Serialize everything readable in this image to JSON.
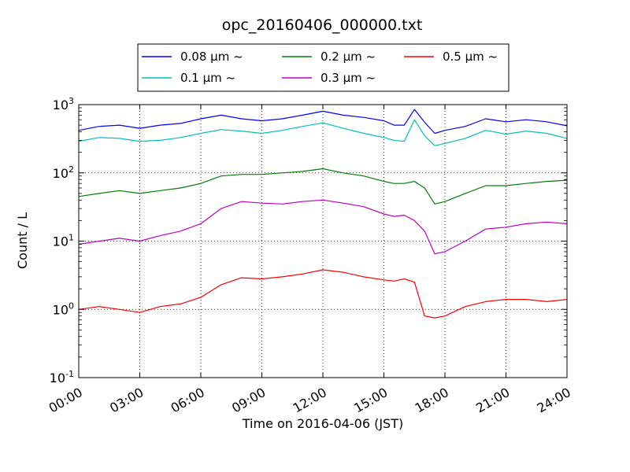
{
  "chart_data": {
    "type": "line",
    "title": "opc_20160406_000000.txt",
    "xlabel": "Time on 2016-04-06 (JST)",
    "ylabel": "Count / L",
    "yscale": "log",
    "ylim": [
      0.1,
      1000
    ],
    "xlim": [
      "00:00",
      "24:00"
    ],
    "x_ticks": [
      "00:00",
      "03:00",
      "06:00",
      "09:00",
      "12:00",
      "15:00",
      "18:00",
      "21:00",
      "24:00"
    ],
    "y_ticks": [
      {
        "base": "10",
        "exp": "-1",
        "value": 0.1
      },
      {
        "base": "10",
        "exp": "0",
        "value": 1
      },
      {
        "base": "10",
        "exp": "1",
        "value": 10
      },
      {
        "base": "10",
        "exp": "2",
        "value": 100
      },
      {
        "base": "10",
        "exp": "3",
        "value": 1000
      }
    ],
    "grid": true,
    "legend": {
      "placement": "top-center",
      "columns": 3,
      "items": [
        {
          "name": "0.08 μm ~",
          "color": "#0000ff"
        },
        {
          "name": "0.1 μm ~",
          "color": "#00bfbf"
        },
        {
          "name": "0.2 μm ~",
          "color": "#008000"
        },
        {
          "name": "0.3 μm ~",
          "color": "#bf00bf"
        },
        {
          "name": "0.5 μm ~",
          "color": "#ff0000"
        }
      ]
    },
    "x": [
      "00:00",
      "01:00",
      "02:00",
      "03:00",
      "04:00",
      "05:00",
      "06:00",
      "07:00",
      "08:00",
      "09:00",
      "10:00",
      "11:00",
      "12:00",
      "13:00",
      "14:00",
      "15:00",
      "15:30",
      "16:00",
      "16:30",
      "17:00",
      "17:30",
      "18:00",
      "19:00",
      "20:00",
      "21:00",
      "22:00",
      "23:00",
      "24:00"
    ],
    "series": [
      {
        "name": "0.08 μm ~",
        "color": "#0000ff",
        "values": [
          420,
          480,
          500,
          450,
          500,
          530,
          620,
          700,
          620,
          580,
          620,
          700,
          800,
          700,
          650,
          580,
          500,
          500,
          850,
          550,
          380,
          420,
          480,
          620,
          560,
          600,
          560,
          490
        ]
      },
      {
        "name": "0.1 μm ~",
        "color": "#00bfbf",
        "values": [
          290,
          330,
          320,
          290,
          300,
          330,
          380,
          430,
          410,
          380,
          420,
          480,
          540,
          450,
          380,
          330,
          300,
          290,
          600,
          350,
          250,
          270,
          320,
          420,
          370,
          410,
          380,
          320
        ]
      },
      {
        "name": "0.2 μm ~",
        "color": "#008000",
        "values": [
          45,
          50,
          55,
          50,
          55,
          60,
          70,
          90,
          95,
          95,
          100,
          105,
          115,
          100,
          90,
          75,
          70,
          70,
          75,
          60,
          35,
          38,
          50,
          65,
          65,
          70,
          75,
          78
        ]
      },
      {
        "name": "0.3 μm ~",
        "color": "#bf00bf",
        "values": [
          9,
          10,
          11,
          10,
          12,
          14,
          18,
          30,
          38,
          36,
          35,
          38,
          40,
          36,
          32,
          25,
          23,
          24,
          20,
          14,
          6.5,
          7,
          10,
          15,
          16,
          18,
          19,
          18
        ]
      },
      {
        "name": "0.5 μm ~",
        "color": "#ff0000",
        "values": [
          1.0,
          1.1,
          1.0,
          0.9,
          1.1,
          1.2,
          1.5,
          2.3,
          2.9,
          2.8,
          3.0,
          3.3,
          3.8,
          3.5,
          3.0,
          2.7,
          2.6,
          2.8,
          2.5,
          0.8,
          0.75,
          0.8,
          1.1,
          1.3,
          1.4,
          1.4,
          1.3,
          1.4
        ]
      }
    ]
  }
}
